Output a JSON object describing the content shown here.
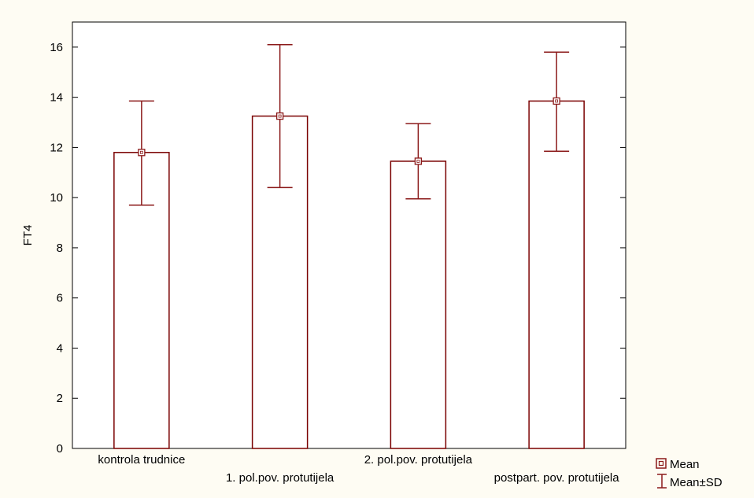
{
  "colors": {
    "page_background": "#fefcf3",
    "plot_background": "#ffffff",
    "bar_stroke": "#7a0000",
    "error_bar": "#8b1a1a",
    "axis": "#000000"
  },
  "chart_data": {
    "type": "bar",
    "title": "",
    "xlabel": "",
    "ylabel": "FT4",
    "ylim": [
      0,
      17
    ],
    "yticks": [
      0,
      2,
      4,
      6,
      8,
      10,
      12,
      14,
      16
    ],
    "grid": false,
    "legend_position": "bottom-right",
    "categories": [
      "kontrola trudnice",
      "1. pol.pov. protutijela",
      "2. pol.pov. protutijela",
      "postpart. pov. protutijela"
    ],
    "series": [
      {
        "name": "Mean",
        "values": [
          11.8,
          13.25,
          11.45,
          13.85
        ]
      },
      {
        "name": "Mean±SD",
        "lower": [
          9.7,
          10.4,
          9.95,
          11.85
        ],
        "upper": [
          13.85,
          16.1,
          12.95,
          15.8
        ]
      }
    ],
    "legend": [
      {
        "label": "Mean",
        "icon": "square-marker-icon"
      },
      {
        "label": "Mean±SD",
        "icon": "error-bar-icon"
      }
    ]
  }
}
